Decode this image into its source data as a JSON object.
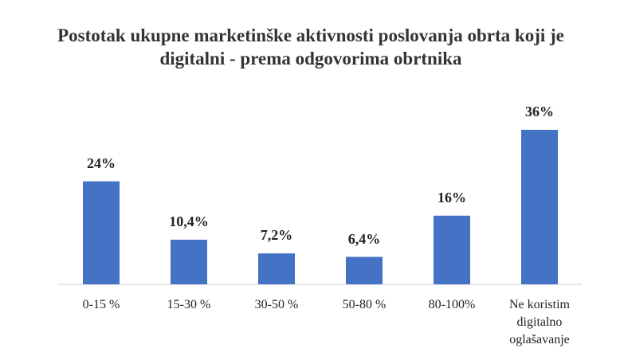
{
  "chart_data": {
    "type": "bar",
    "title": "Postotak ukupne marketinške aktivnosti poslovanja obrta koji je digitalni - prema odgovorima obrtnika",
    "categories": [
      "0-15 %",
      "15-30 %",
      "30-50 %",
      "50-80 %",
      "80-100%",
      "Ne koristim digitalno oglašavanje"
    ],
    "values": [
      24,
      10.4,
      7.2,
      6.4,
      16,
      36
    ],
    "value_labels": [
      "24%",
      "10,4%",
      "7,2%",
      "6,4%",
      "16%",
      "36%"
    ],
    "color": "#4472c4"
  }
}
